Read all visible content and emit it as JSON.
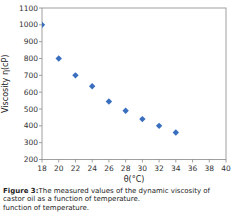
{
  "chart_data": {
    "type": "scatter",
    "x": [
      18,
      20,
      22,
      24,
      26,
      28,
      30,
      32,
      34
    ],
    "y": [
      1000,
      800,
      700,
      635,
      545,
      490,
      440,
      400,
      360
    ],
    "xlim": [
      18,
      40
    ],
    "ylim": [
      200,
      1100
    ],
    "xticks": [
      18,
      20,
      22,
      24,
      26,
      28,
      30,
      32,
      34,
      36,
      38,
      40
    ],
    "yticks": [
      200,
      300,
      400,
      500,
      600,
      700,
      800,
      900,
      1000,
      1100
    ],
    "xlabel": "θ(°C)",
    "ylabel": "Viscosity η(cP)",
    "color": "#3a6fbf",
    "marker": "diamond",
    "grid": false,
    "caption": [
      "Figure 3:",
      " The measured values of the dynamic viscosity of castor oil as a function of temperature.",
      "function of temperature."
    ]
  }
}
